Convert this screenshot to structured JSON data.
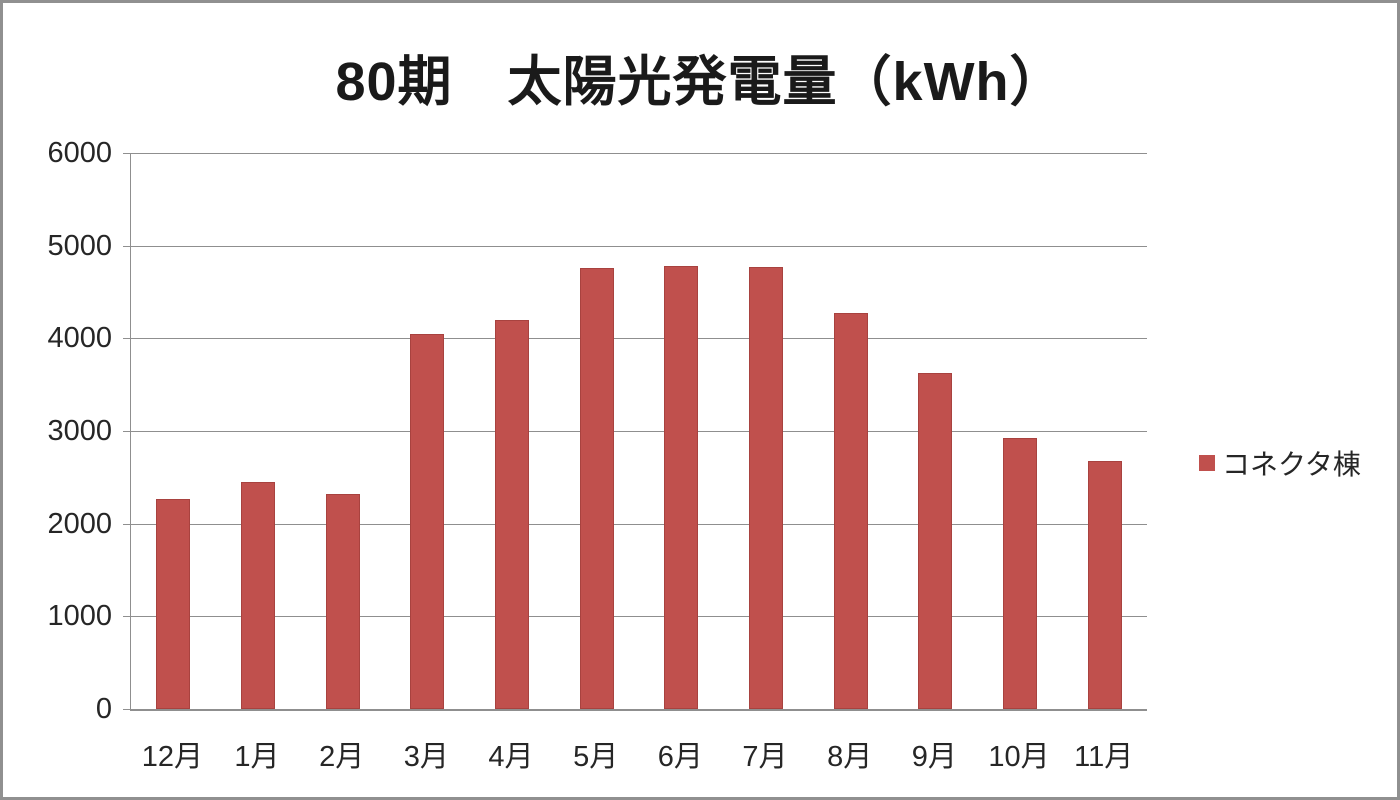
{
  "window": {
    "background": "#ffffff",
    "border_color": "#909090"
  },
  "chart_data": {
    "type": "bar",
    "title": "80期　太陽光発電量（kWh）",
    "categories": [
      "12月",
      "1月",
      "2月",
      "3月",
      "4月",
      "5月",
      "6月",
      "7月",
      "8月",
      "9月",
      "10月",
      "11月"
    ],
    "series": [
      {
        "name": "コネクタ棟",
        "color": "#C0504D",
        "values": [
          2270,
          2450,
          2320,
          4050,
          4200,
          4760,
          4780,
          4770,
          4270,
          3630,
          2930,
          2680
        ]
      }
    ],
    "xlabel": "",
    "ylabel": "",
    "ylim": [
      0,
      6000
    ],
    "ytick_interval": 1000,
    "ytick_labels": [
      "0",
      "1000",
      "2000",
      "3000",
      "4000",
      "5000",
      "6000"
    ],
    "grid": true,
    "gridline_color": "#8f8f8f",
    "legend_position": "right"
  }
}
